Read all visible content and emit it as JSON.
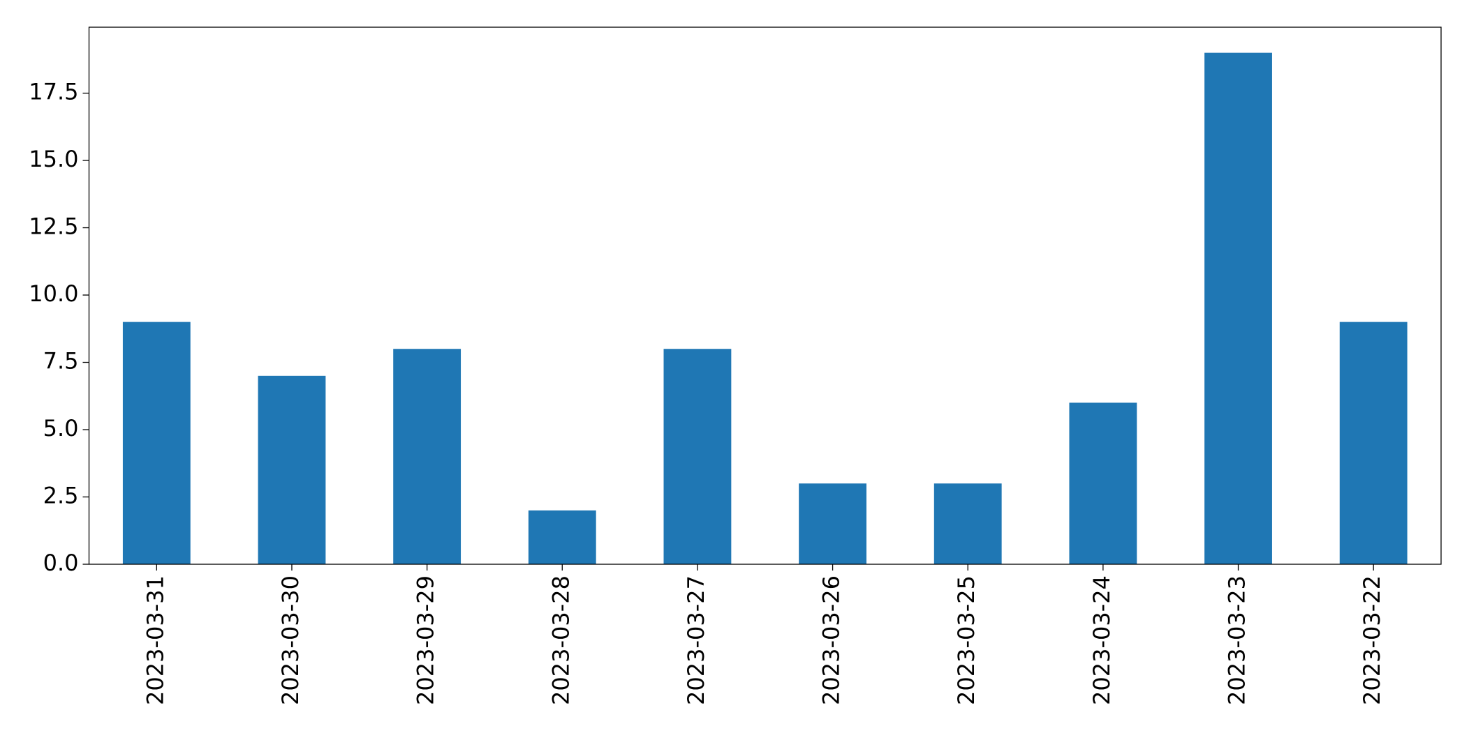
{
  "chart_data": {
    "type": "bar",
    "categories": [
      "2023-03-31",
      "2023-03-30",
      "2023-03-29",
      "2023-03-28",
      "2023-03-27",
      "2023-03-26",
      "2023-03-25",
      "2023-03-24",
      "2023-03-23",
      "2023-03-22"
    ],
    "values": [
      9,
      7,
      8,
      2,
      8,
      3,
      3,
      6,
      19,
      9
    ],
    "color": "#1f77b4",
    "ylim": [
      0,
      19.95
    ],
    "yticks": [
      {
        "value": 0,
        "label": "0.0"
      },
      2.5,
      {
        "value": 5,
        "label": "5.0"
      },
      7.5,
      {
        "value": 10,
        "label": "10.0"
      },
      12.5,
      {
        "value": 15,
        "label": "15.0"
      },
      17.5
    ],
    "grid": false
  }
}
